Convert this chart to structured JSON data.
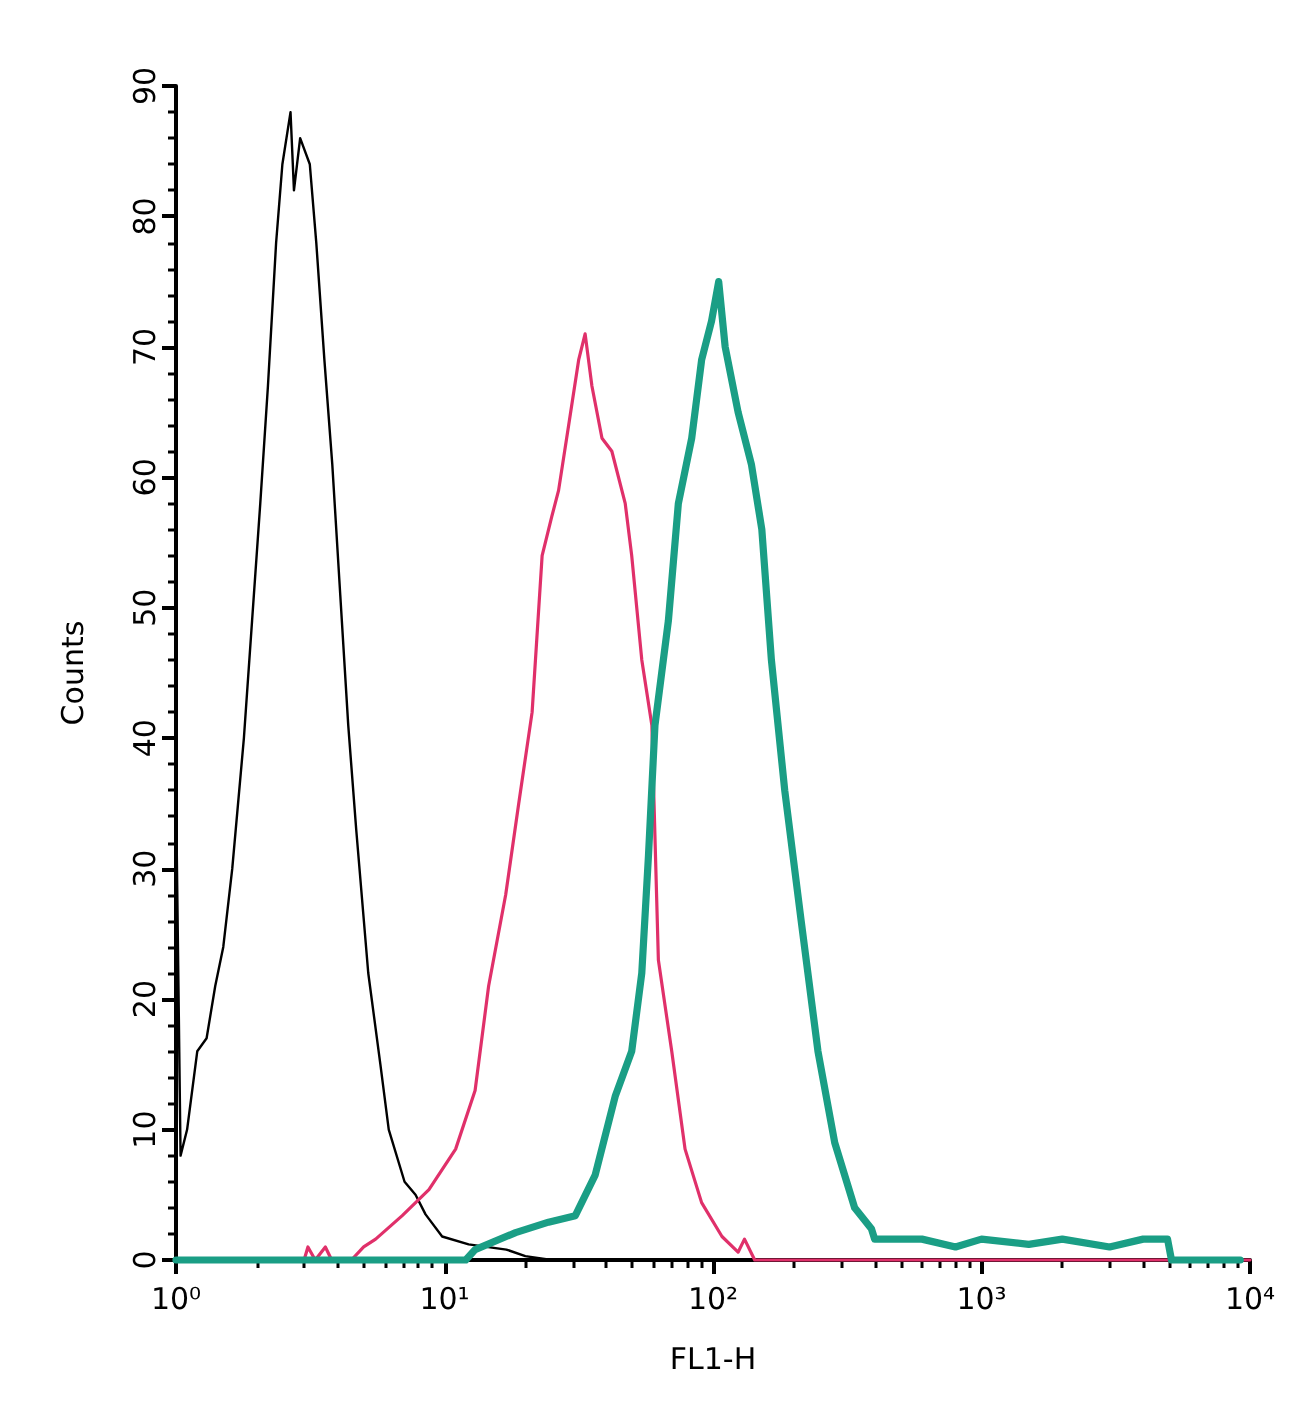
{
  "chart_data": {
    "type": "line",
    "xlabel": "FL1-H",
    "ylabel": "Counts",
    "log": "x",
    "marker": "none",
    "xlim": [
      1,
      10000
    ],
    "ylim": [
      0,
      90
    ],
    "xticks": [
      {
        "value": 1,
        "label": "10⁰"
      },
      {
        "value": 2,
        "label": null
      },
      {
        "value": 3,
        "label": null
      },
      {
        "value": 4,
        "label": null
      },
      {
        "value": 5,
        "label": null
      },
      {
        "value": 6,
        "label": null
      },
      {
        "value": 7,
        "label": null
      },
      {
        "value": 8,
        "label": null
      },
      {
        "value": 9,
        "label": null
      },
      {
        "value": 10,
        "label": "10¹"
      },
      {
        "value": 20,
        "label": null
      },
      {
        "value": 30,
        "label": null
      },
      {
        "value": 40,
        "label": null
      },
      {
        "value": 50,
        "label": null
      },
      {
        "value": 60,
        "label": null
      },
      {
        "value": 70,
        "label": null
      },
      {
        "value": 80,
        "label": null
      },
      {
        "value": 90,
        "label": null
      },
      {
        "value": 100,
        "label": "10²"
      },
      {
        "value": 200,
        "label": null
      },
      {
        "value": 300,
        "label": null
      },
      {
        "value": 400,
        "label": null
      },
      {
        "value": 500,
        "label": null
      },
      {
        "value": 600,
        "label": null
      },
      {
        "value": 700,
        "label": null
      },
      {
        "value": 800,
        "label": null
      },
      {
        "value": 900,
        "label": null
      },
      {
        "value": 1000,
        "label": "10³"
      },
      {
        "value": 2000,
        "label": null
      },
      {
        "value": 3000,
        "label": null
      },
      {
        "value": 4000,
        "label": null
      },
      {
        "value": 5000,
        "label": null
      },
      {
        "value": 6000,
        "label": null
      },
      {
        "value": 7000,
        "label": null
      },
      {
        "value": 8000,
        "label": null
      },
      {
        "value": 9000,
        "label": null
      },
      {
        "value": 10000,
        "label": "10⁴"
      }
    ],
    "yticks": [
      0,
      {
        "value": 2,
        "label": null
      },
      {
        "value": 4,
        "label": null
      },
      {
        "value": 6,
        "label": null
      },
      {
        "value": 8,
        "label": null
      },
      10,
      {
        "value": 12,
        "label": null
      },
      {
        "value": 14,
        "label": null
      },
      {
        "value": 16,
        "label": null
      },
      {
        "value": 18,
        "label": null
      },
      20,
      {
        "value": 22,
        "label": null
      },
      {
        "value": 24,
        "label": null
      },
      {
        "value": 26,
        "label": null
      },
      {
        "value": 28,
        "label": null
      },
      30,
      {
        "value": 32,
        "label": null
      },
      {
        "value": 34,
        "label": null
      },
      {
        "value": 36,
        "label": null
      },
      {
        "value": 38,
        "label": null
      },
      40,
      {
        "value": 42,
        "label": null
      },
      {
        "value": 44,
        "label": null
      },
      {
        "value": 46,
        "label": null
      },
      {
        "value": 48,
        "label": null
      },
      50,
      {
        "value": 52,
        "label": null
      },
      {
        "value": 54,
        "label": null
      },
      {
        "value": 56,
        "label": null
      },
      {
        "value": 58,
        "label": null
      },
      60,
      {
        "value": 62,
        "label": null
      },
      {
        "value": 64,
        "label": null
      },
      {
        "value": 66,
        "label": null
      },
      {
        "value": 68,
        "label": null
      },
      70,
      {
        "value": 72,
        "label": null
      },
      {
        "value": 74,
        "label": null
      },
      {
        "value": 76,
        "label": null
      },
      {
        "value": 78,
        "label": null
      },
      80,
      {
        "value": 82,
        "label": null
      },
      {
        "value": 84,
        "label": null
      },
      {
        "value": 86,
        "label": null
      },
      {
        "value": 88,
        "label": null
      },
      90
    ],
    "series": [
      {
        "color": "#000000",
        "x": [
          1,
          1.04,
          1.1,
          1.2,
          1.3,
          1.4,
          1.5,
          1.62,
          1.79,
          1.92,
          2.06,
          2.2,
          2.36,
          2.49,
          2.67,
          2.75,
          2.9,
          3.15,
          3.33,
          3.57,
          3.82,
          4.09,
          4.38,
          4.69,
          5.2,
          5.77,
          6.2,
          7.1,
          7.8,
          8.5,
          9.8,
          12.3,
          17,
          20,
          25
        ],
        "values": [
          36,
          8,
          10,
          16,
          17,
          21,
          24,
          30,
          40,
          49,
          58,
          67,
          78,
          84,
          88,
          82,
          86,
          84,
          78,
          69,
          61,
          51,
          41,
          33,
          22,
          15,
          10,
          6,
          5,
          3.5,
          1.8,
          1.2,
          0.8,
          0.3,
          0
        ]
      },
      {
        "color": "#e0306a",
        "x": [
          3,
          3.1,
          3.3,
          3.6,
          3.8,
          4.5,
          5,
          5.54,
          6.96,
          8.75,
          11,
          13,
          14.6,
          16.9,
          18.9,
          21.2,
          23.1,
          25.1,
          26.6,
          29,
          31.6,
          33.4,
          35.4,
          38.6,
          42,
          47.1,
          49.8,
          54.3,
          59.2,
          62.6,
          70.2,
          78.7,
          90.7,
          108,
          124,
          131,
          143,
          10000
        ],
        "values": [
          0,
          1,
          0,
          1,
          0,
          0,
          1,
          1.6,
          3.4,
          5.4,
          8.5,
          13,
          21,
          28,
          35,
          42,
          54,
          57,
          59,
          64,
          69,
          71,
          67,
          63,
          62,
          58,
          54,
          46,
          41,
          23,
          16,
          8.5,
          4.4,
          1.8,
          0.6,
          1.6,
          0,
          0
        ]
      },
      {
        "color": "#1a9e85",
        "x": [
          1,
          12,
          13,
          18.4,
          24.4,
          30.7,
          36.4,
          43.3,
          49.8,
          54.3,
          57.5,
          60.8,
          68.2,
          74.3,
          83.3,
          90.7,
          98.8,
          105,
          111,
          124,
          139,
          152,
          165,
          185,
          213,
          246,
          284,
          337,
          389,
          400,
          600,
          800,
          1000,
          1500,
          2000,
          3000,
          4000,
          4930,
          5100,
          9200
        ],
        "values": [
          0,
          0,
          0.8,
          2.1,
          2.9,
          3.4,
          6.5,
          12.6,
          16,
          22,
          31,
          41,
          49,
          58,
          63,
          69,
          72,
          75,
          70,
          65,
          61,
          56,
          46,
          36,
          26,
          16,
          9,
          4,
          2.4,
          1.6,
          1.6,
          1,
          1.6,
          1.2,
          1.6,
          1,
          1.6,
          1.6,
          0,
          0
        ]
      }
    ]
  }
}
